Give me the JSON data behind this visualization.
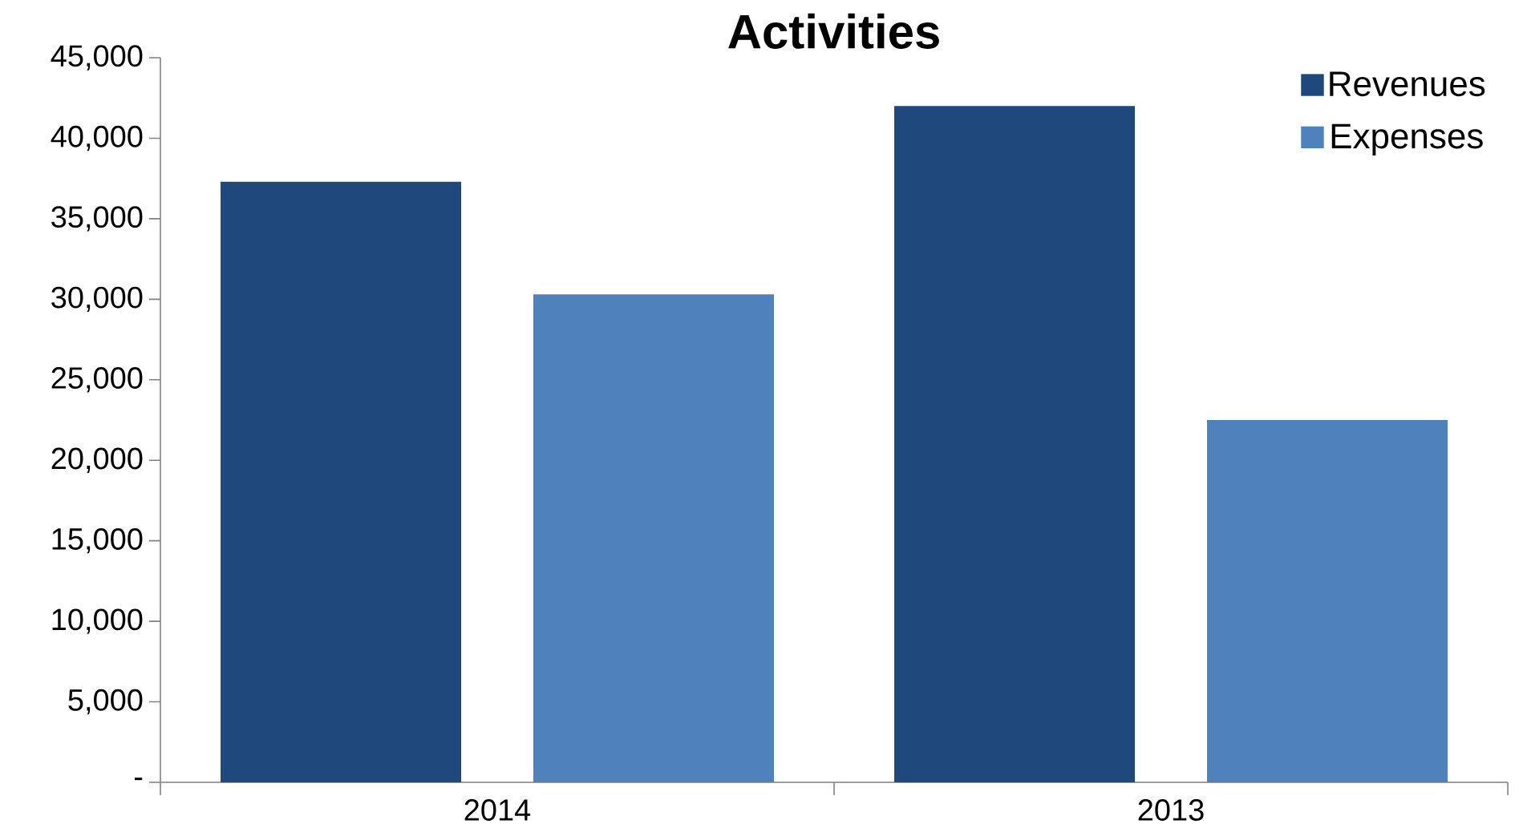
{
  "chart_data": {
    "type": "bar",
    "title": "Activities",
    "categories": [
      "2014",
      "2013"
    ],
    "series": [
      {
        "name": "Revenues",
        "color": "#1f497d",
        "values": [
          37300,
          42000
        ]
      },
      {
        "name": "Expenses",
        "color": "#4f81bd",
        "values": [
          30300,
          22500
        ]
      }
    ],
    "ylim": [
      0,
      45000
    ],
    "yticks": [
      {
        "value": 0,
        "label": "-"
      },
      {
        "value": 5000,
        "label": "5,000"
      },
      {
        "value": 10000,
        "label": "10,000"
      },
      {
        "value": 15000,
        "label": "15,000"
      },
      {
        "value": 20000,
        "label": "20,000"
      },
      {
        "value": 25000,
        "label": "25,000"
      },
      {
        "value": 30000,
        "label": "30,000"
      },
      {
        "value": 35000,
        "label": "35,000"
      },
      {
        "value": 40000,
        "label": "40,000"
      },
      {
        "value": 45000,
        "label": "45,000"
      }
    ],
    "grid": false,
    "legend": "top right"
  }
}
